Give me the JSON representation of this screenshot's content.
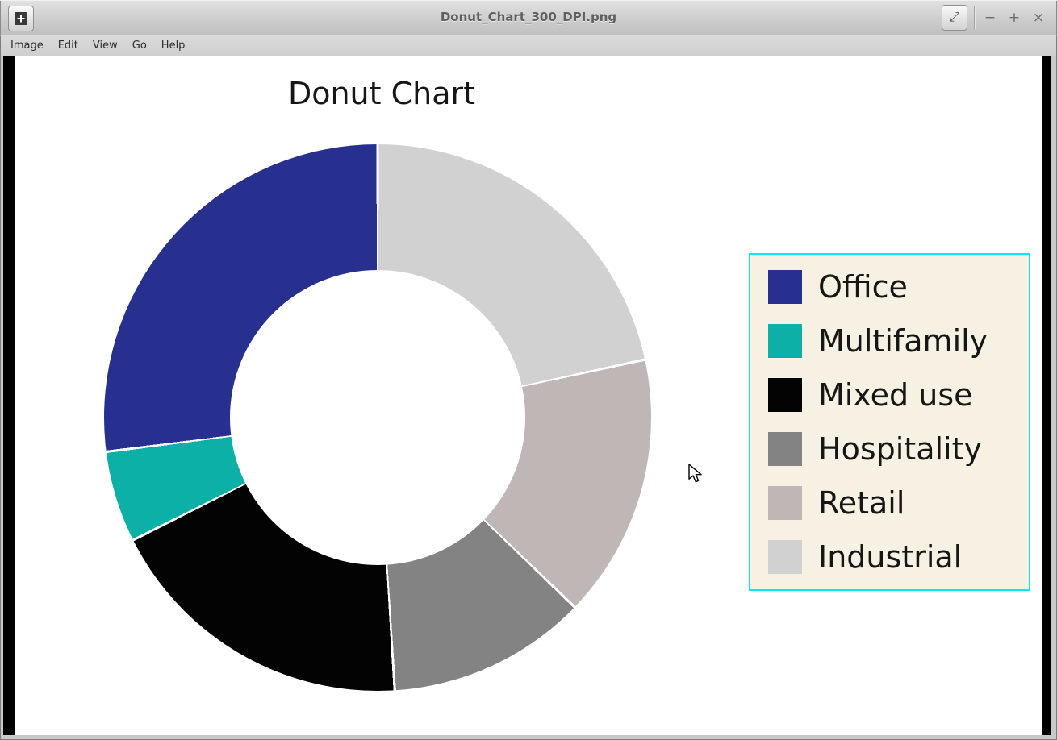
{
  "window": {
    "title": "Donut_Chart_300_DPI.png",
    "controls": {
      "fullscreen": "⤢",
      "minimize": "−",
      "maximize": "+",
      "close": "×"
    }
  },
  "menubar": {
    "items": [
      "Image",
      "Edit",
      "View",
      "Go",
      "Help"
    ]
  },
  "chart_data": {
    "type": "pie",
    "variant": "donut",
    "title": "Donut Chart",
    "categories": [
      "Office",
      "Multifamily",
      "Mixed use",
      "Hospitality",
      "Retail",
      "Industrial"
    ],
    "values": [
      27.0,
      5.4,
      18.6,
      11.8,
      15.6,
      21.6
    ],
    "unit": "percent-of-total",
    "colors": [
      "#28308f",
      "#0cb0a6",
      "#030303",
      "#838383",
      "#bfb7b5",
      "#d1d1d1"
    ],
    "start_angle": 90,
    "direction": "counterclockwise",
    "inner_radius_ratio": 0.54,
    "slice_gap_color": "#ffffff",
    "legend": {
      "position": "right",
      "background": "#f6f1e2",
      "border_color": "#00e8ff"
    }
  }
}
